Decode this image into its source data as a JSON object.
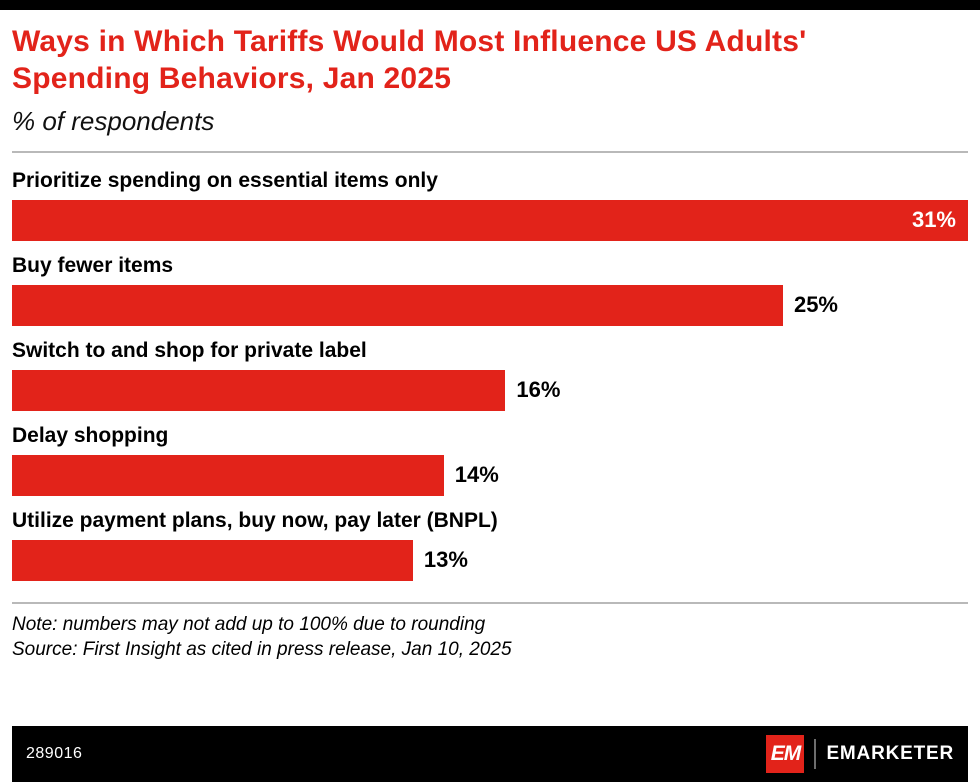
{
  "header": {
    "title": "Ways in Which Tariffs Would Most Influence US Adults' Spending Behaviors, Jan 2025",
    "subtitle": "% of respondents"
  },
  "chart_data": {
    "type": "bar",
    "orientation": "horizontal",
    "title": "Ways in Which Tariffs Would Most Influence US Adults' Spending Behaviors, Jan 2025",
    "subtitle": "% of respondents",
    "categories": [
      "Prioritize spending on essential items only",
      "Buy fewer items",
      "Switch to and shop for private label",
      "Delay shopping",
      "Utilize payment plans, buy now, pay later (BNPL)"
    ],
    "values": [
      31,
      25,
      16,
      14,
      13
    ],
    "value_suffix": "%",
    "xlabel": "",
    "ylabel": "",
    "xlim": [
      0,
      31
    ],
    "grid": false,
    "legend": "none",
    "bar_color": "#e2231a"
  },
  "footnotes": {
    "note": "Note: numbers may not add up to 100% due to rounding",
    "source": "Source: First Insight as cited in press release, Jan 10, 2025"
  },
  "footer": {
    "chart_number": "289016",
    "logo_mark": "EM",
    "brand_name": "EMARKETER"
  },
  "colors": {
    "accent_red": "#e2231a",
    "footer_bg": "#000000",
    "rule_gray": "#b9b9b9"
  }
}
